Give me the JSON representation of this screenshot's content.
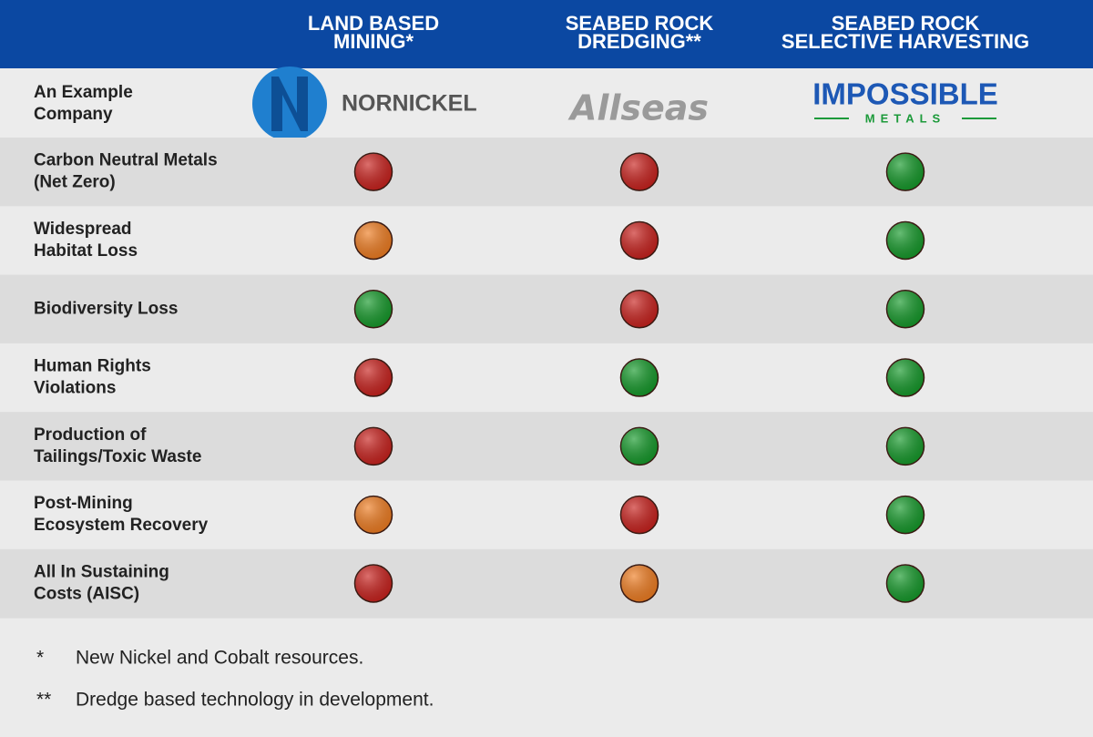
{
  "header": {
    "columns": [
      {
        "lines": [
          "LAND BASED",
          "MINING*"
        ]
      },
      {
        "lines": [
          "SEABED ROCK",
          "DREDGING**"
        ]
      },
      {
        "lines": [
          "SEABED ROCK",
          "SELECTIVE HARVESTING"
        ]
      }
    ]
  },
  "company_row": {
    "label": [
      "An Example",
      "Company"
    ],
    "logos": [
      {
        "name": "NORNICKEL"
      },
      {
        "name": "Allseas"
      },
      {
        "name": "IMPOSSIBLE",
        "tagline": "METALS"
      }
    ]
  },
  "rows": [
    {
      "label": [
        "Carbon Neutral Metals",
        "(Net Zero)"
      ],
      "ratings": [
        "red",
        "red",
        "green"
      ]
    },
    {
      "label": [
        "Widespread",
        "Habitat Loss"
      ],
      "ratings": [
        "orange",
        "red",
        "green"
      ]
    },
    {
      "label": [
        "Biodiversity Loss"
      ],
      "ratings": [
        "green",
        "red",
        "green"
      ]
    },
    {
      "label": [
        "Human Rights",
        "Violations"
      ],
      "ratings": [
        "red",
        "green",
        "green"
      ]
    },
    {
      "label": [
        "Production of",
        "Tailings/Toxic Waste"
      ],
      "ratings": [
        "red",
        "green",
        "green"
      ]
    },
    {
      "label": [
        "Post-Mining",
        "Ecosystem Recovery"
      ],
      "ratings": [
        "orange",
        "red",
        "green"
      ]
    },
    {
      "label": [
        "All In Sustaining",
        "Costs (AISC)"
      ],
      "ratings": [
        "red",
        "orange",
        "green"
      ]
    }
  ],
  "colors": {
    "red": "#c9221e",
    "orange": "#ef7d22",
    "green": "#169a2b"
  },
  "footnotes": [
    {
      "marker": "*",
      "text": "New Nickel and Cobalt resources."
    },
    {
      "marker": "**",
      "text": "Dredge based technology in development."
    }
  ]
}
